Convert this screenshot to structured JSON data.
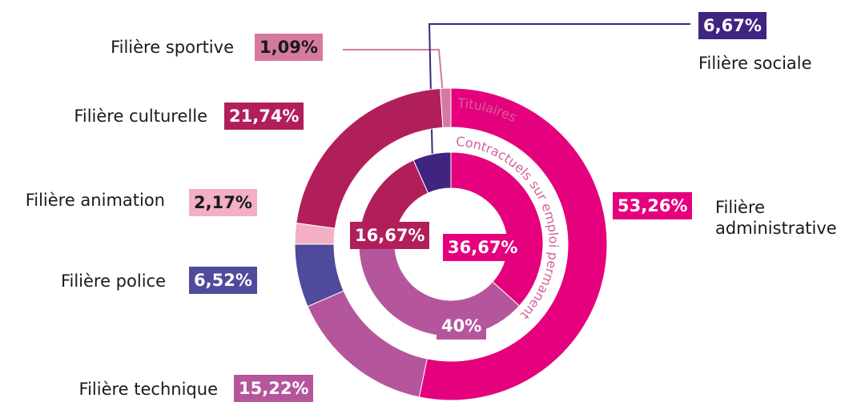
{
  "chart_data": {
    "type": "donut",
    "categories": [
      "Filière administrative",
      "Filière technique",
      "Filière police",
      "Filière animation",
      "Filière culturelle",
      "Filière sportive",
      "Filière sociale"
    ],
    "colors": [
      "#e5007d",
      "#b5569c",
      "#4f4a9c",
      "#f3afc4",
      "#b11f5b",
      "#d57a9e",
      "#3f2580"
    ],
    "series": [
      {
        "name": "Titulaires",
        "values": [
          53.26,
          15.22,
          6.52,
          2.17,
          21.74,
          1.09,
          null
        ],
        "value_labels": [
          "53,26%",
          "15,22%",
          "6,52%",
          "2,17%",
          "21,74%",
          "1,09%",
          null
        ]
      },
      {
        "name": "Contractuels sur emploi permanent",
        "values": [
          36.67,
          40,
          null,
          null,
          16.67,
          null,
          6.67
        ],
        "value_labels": [
          "36,67%",
          "40%",
          null,
          null,
          "16,67%",
          null,
          "6,67%"
        ]
      }
    ]
  }
}
